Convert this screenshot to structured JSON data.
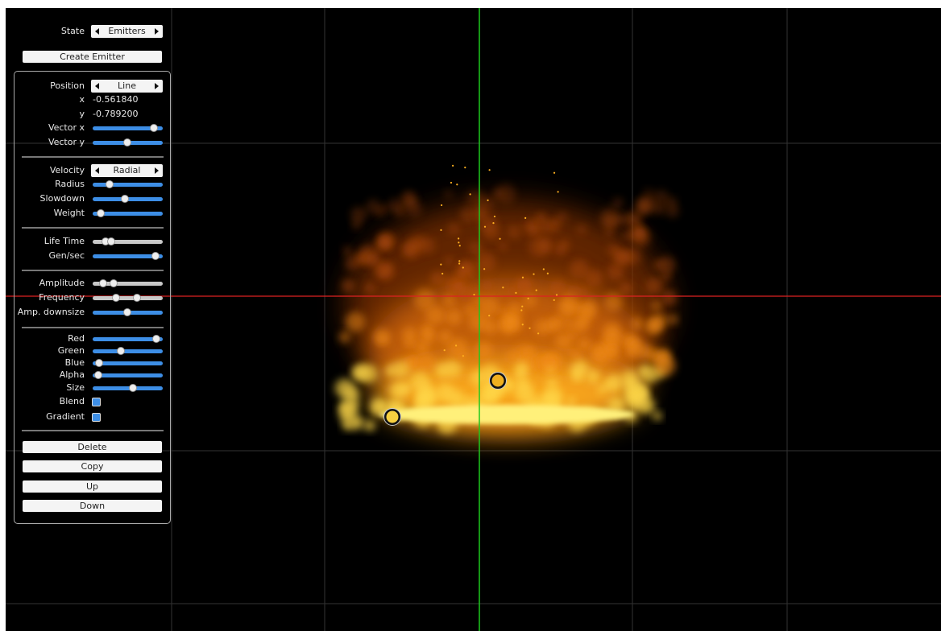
{
  "state_selector": {
    "label": "State",
    "value": "Emitters"
  },
  "create_button": "Create Emitter",
  "position_selector": {
    "label": "Position",
    "value": "Line"
  },
  "coordinates": [
    {
      "label": "x",
      "value": "-0.561840"
    },
    {
      "label": "y",
      "value": "-0.789200"
    }
  ],
  "position_sliders": [
    "Vector x",
    "Vector y"
  ],
  "velocity_selector": {
    "label": "Velocity",
    "value": "Radial"
  },
  "velocity_sliders": [
    "Radius",
    "Slowdown",
    "Weight"
  ],
  "life_sliders": [
    "Life Time",
    "Gen/sec"
  ],
  "wave_sliders": [
    "Amplitude",
    "Frequency",
    "Amp. downsize"
  ],
  "color_sliders": [
    "Red",
    "Green",
    "Blue",
    "Alpha",
    "Size"
  ],
  "checkboxes": [
    "Blend",
    "Gradient"
  ],
  "buttons": [
    "Delete",
    "Copy",
    "Up",
    "Down"
  ]
}
